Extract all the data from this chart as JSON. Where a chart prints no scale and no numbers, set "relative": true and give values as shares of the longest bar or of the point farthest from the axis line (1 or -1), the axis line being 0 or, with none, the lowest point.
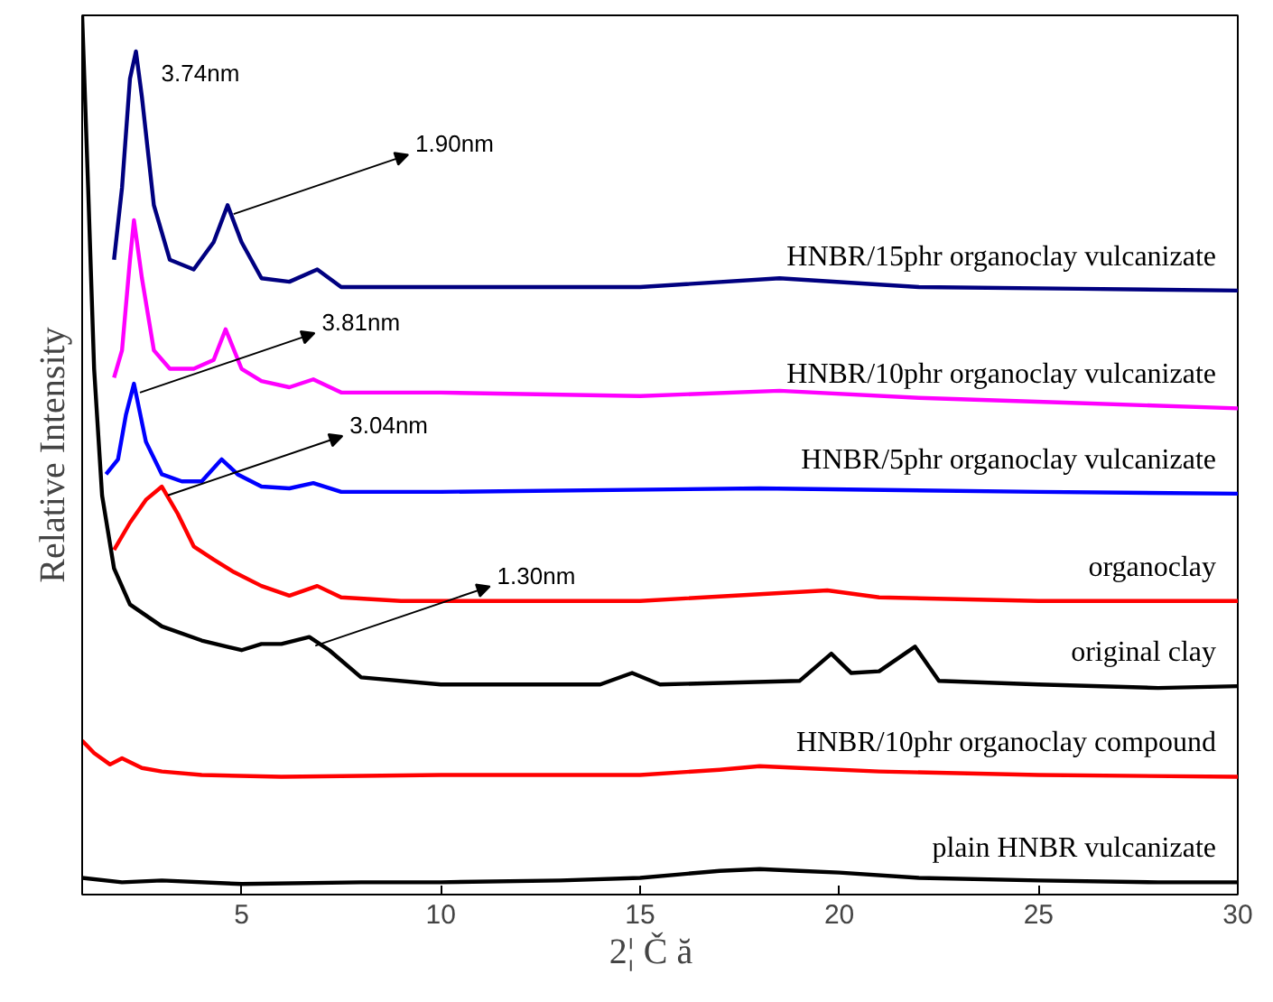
{
  "chart_data": {
    "type": "line",
    "relative": true,
    "xlabel": "2¦  Č  ă",
    "ylabel": "Relative Intensity",
    "xlim": [
      1,
      30
    ],
    "xticks": [
      5,
      10,
      15,
      20,
      25,
      30
    ],
    "grid": false,
    "legend": false,
    "series": [
      {
        "name": "HNBR/15phr organoclay vulcanizate",
        "color": "#000080",
        "x": [
          1.8,
          2.0,
          2.2,
          2.35,
          2.5,
          2.8,
          3.2,
          3.8,
          4.3,
          4.65,
          5.0,
          5.5,
          6.2,
          6.9,
          7.5,
          10,
          15,
          18.5,
          22,
          26,
          30
        ],
        "values": [
          0.722,
          0.804,
          0.928,
          0.959,
          0.907,
          0.784,
          0.722,
          0.711,
          0.742,
          0.784,
          0.742,
          0.701,
          0.697,
          0.711,
          0.691,
          0.691,
          0.691,
          0.701,
          0.691,
          0.689,
          0.687
        ]
      },
      {
        "name": "HNBR/10phr organoclay vulcanizate",
        "color": "#ff00ff",
        "x": [
          1.8,
          2.0,
          2.2,
          2.3,
          2.5,
          2.8,
          3.2,
          3.8,
          4.3,
          4.6,
          5.0,
          5.5,
          6.2,
          6.8,
          7.5,
          10,
          15,
          18.5,
          22,
          26,
          30
        ],
        "values": [
          0.588,
          0.619,
          0.722,
          0.767,
          0.701,
          0.619,
          0.598,
          0.598,
          0.608,
          0.643,
          0.598,
          0.584,
          0.577,
          0.586,
          0.571,
          0.571,
          0.567,
          0.573,
          0.565,
          0.559,
          0.553
        ]
      },
      {
        "name": "HNBR/5phr organoclay vulcanizate",
        "color": "#0000ff",
        "x": [
          1.6,
          1.9,
          2.1,
          2.3,
          2.6,
          3,
          3.5,
          4,
          4.5,
          4.9,
          5.5,
          6.2,
          6.8,
          7.5,
          10,
          18,
          25,
          30
        ],
        "values": [
          0.478,
          0.495,
          0.546,
          0.581,
          0.515,
          0.478,
          0.47,
          0.47,
          0.495,
          0.478,
          0.464,
          0.462,
          0.468,
          0.458,
          0.458,
          0.462,
          0.458,
          0.456
        ]
      },
      {
        "name": "organoclay",
        "color": "#ff0000",
        "x": [
          1.8,
          2.2,
          2.6,
          3.0,
          3.4,
          3.8,
          4.3,
          4.8,
          5.5,
          6.2,
          6.9,
          7.5,
          9,
          15,
          19.7,
          21,
          25,
          30
        ],
        "values": [
          0.392,
          0.423,
          0.449,
          0.464,
          0.433,
          0.396,
          0.381,
          0.367,
          0.351,
          0.34,
          0.351,
          0.338,
          0.334,
          0.334,
          0.346,
          0.338,
          0.334,
          0.334
        ]
      },
      {
        "name": "original clay",
        "color": "#000000",
        "x": [
          1,
          1.15,
          1.3,
          1.5,
          1.8,
          2.2,
          3,
          4,
          5,
          5.5,
          6,
          6.7,
          7.2,
          8,
          10,
          14,
          14.8,
          15.5,
          19,
          19.8,
          20.3,
          21,
          21.9,
          22.5,
          25,
          28,
          30
        ],
        "values": [
          1.0,
          0.804,
          0.598,
          0.454,
          0.371,
          0.33,
          0.305,
          0.289,
          0.278,
          0.285,
          0.285,
          0.293,
          0.278,
          0.247,
          0.239,
          0.239,
          0.252,
          0.239,
          0.243,
          0.274,
          0.252,
          0.254,
          0.282,
          0.243,
          0.239,
          0.235,
          0.237
        ]
      },
      {
        "name": "HNBR/10phr organoclay compound",
        "color": "#ff0000",
        "x": [
          1,
          1.3,
          1.7,
          2,
          2.5,
          3,
          4,
          6,
          10,
          15,
          17,
          18,
          19,
          21,
          25,
          30
        ],
        "values": [
          0.175,
          0.161,
          0.148,
          0.155,
          0.144,
          0.14,
          0.136,
          0.134,
          0.136,
          0.136,
          0.142,
          0.146,
          0.144,
          0.14,
          0.136,
          0.134
        ]
      },
      {
        "name": "plain HNBR vulcanizate",
        "color": "#000000",
        "x": [
          1,
          2,
          3,
          5,
          8,
          10,
          13,
          15,
          16,
          17,
          18,
          19,
          20,
          22,
          25,
          28,
          30
        ],
        "values": [
          0.019,
          0.014,
          0.016,
          0.012,
          0.014,
          0.014,
          0.016,
          0.019,
          0.023,
          0.027,
          0.029,
          0.027,
          0.025,
          0.019,
          0.016,
          0.014,
          0.014
        ]
      }
    ],
    "annotations": [
      {
        "text": "3.74nm",
        "x": 2.35,
        "y": 0.959
      },
      {
        "text": "1.90nm",
        "x": 4.65,
        "y": 0.784
      },
      {
        "text": "3.81nm",
        "x": 2.3,
        "y": 0.581
      },
      {
        "text": "3.04nm",
        "x": 3.0,
        "y": 0.464
      },
      {
        "text": "1.30nm",
        "x": 6.7,
        "y": 0.293
      }
    ]
  }
}
